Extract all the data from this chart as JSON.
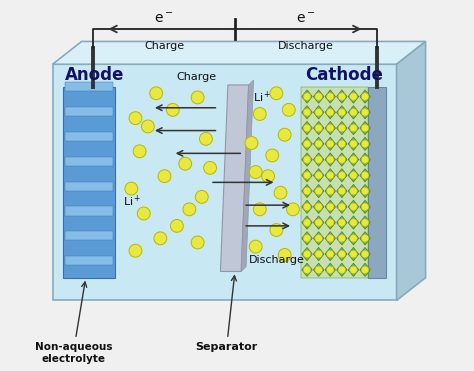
{
  "fig_width": 4.74,
  "fig_height": 3.71,
  "dpi": 100,
  "bg_color": "#f0f0f0",
  "box_front_color": "#c8e8f4",
  "box_top_color": "#daf0f8",
  "box_right_color": "#a8c8d8",
  "box_edge_color": "#88aabb",
  "anode_color": "#5b9bd5",
  "anode_stripe_color": "#85bce8",
  "anode_edge": "#3a70a8",
  "cathode_bg_color": "#c8e0b0",
  "cathode_diamond_color": "#7ab860",
  "cathode_diamond_edge": "#4a8830",
  "cathode_plate_color": "#8aa8c0",
  "cathode_plate_edge": "#6888a0",
  "sep_color": "#c0c8d8",
  "sep_edge": "#9098a8",
  "sep_shadow_color": "#a0a8b8",
  "li_color": "#e8e840",
  "li_edge": "#b8b800",
  "rod_color": "#333333",
  "arrow_color": "#333333",
  "text_color": "#111111",
  "anode_label_color": "#111166",
  "cathode_label_color": "#111166",
  "charge_label": "Charge",
  "discharge_label": "Discharge",
  "anode_label": "Anode",
  "cathode_label": "Cathode",
  "separator_label": "Separator",
  "electrolyte_label": "Non-aqueous\nelectrolyte",
  "charge_inner": "Charge",
  "discharge_inner": "Discharge",
  "li_label": "Li⁺"
}
